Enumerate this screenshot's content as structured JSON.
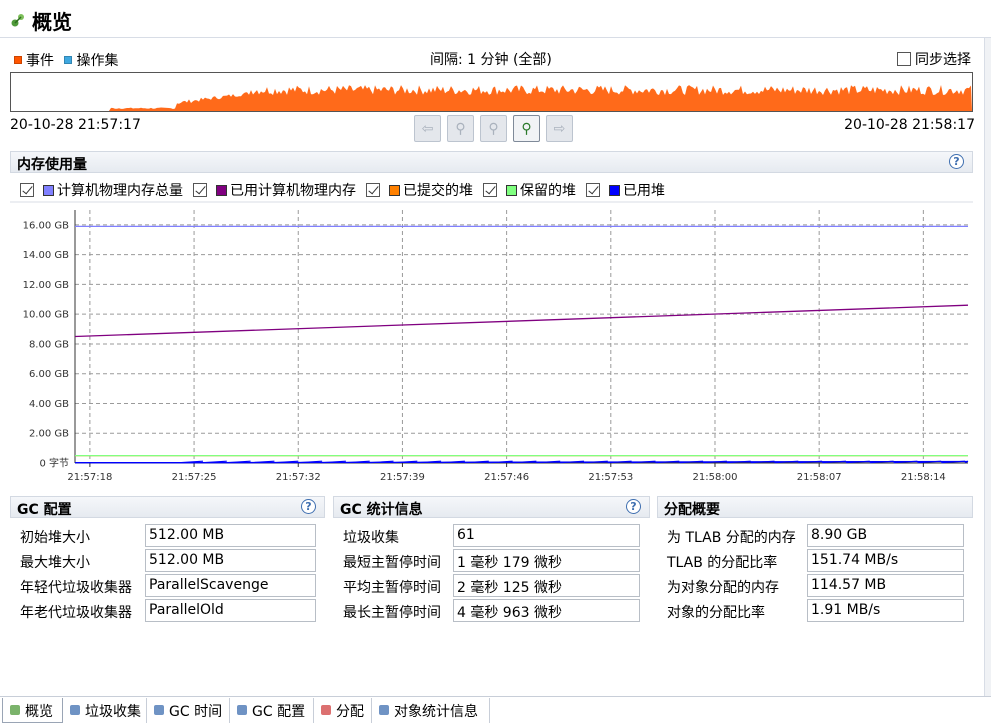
{
  "title": "概览",
  "events": {
    "legend": [
      {
        "label": "事件",
        "color": "#ff5500"
      },
      {
        "label": "操作集",
        "color": "#3fa8e0"
      }
    ],
    "interval_label": "间隔: 1 分钟 (全部)",
    "sync_label": "同步选择",
    "sync_checked": false,
    "start_time": "20-10-28 21:57:17",
    "end_time": "20-10-28 21:58:17",
    "bar_color": "#ff6a1a"
  },
  "nav_buttons": [
    {
      "name": "back-arrow-icon",
      "active": false
    },
    {
      "name": "zoom-out-icon",
      "active": false
    },
    {
      "name": "zoom-reset-icon",
      "active": false
    },
    {
      "name": "zoom-in-icon",
      "active": true
    },
    {
      "name": "forward-arrow-icon",
      "active": false
    }
  ],
  "memory": {
    "title": "内存使用量",
    "help": "?",
    "legend": [
      {
        "label": "计算机物理内存总量",
        "color": "#8080ff",
        "checked": true
      },
      {
        "label": "已用计算机物理内存",
        "color": "#800080",
        "checked": true
      },
      {
        "label": "已提交的堆",
        "color": "#ff8000",
        "checked": true
      },
      {
        "label": "保留的堆",
        "color": "#80ff80",
        "checked": true
      },
      {
        "label": "已用堆",
        "color": "#0000ff",
        "checked": true
      }
    ]
  },
  "chart_data": {
    "type": "line",
    "title": "内存使用量",
    "y_tick_labels": [
      "0 字节",
      "2.00 GB",
      "4.00 GB",
      "6.00 GB",
      "8.00 GB",
      "10.00 GB",
      "12.00 GB",
      "14.00 GB",
      "16.00 GB"
    ],
    "y_ticks_gb": [
      0,
      2,
      4,
      6,
      8,
      10,
      12,
      14,
      16
    ],
    "ylim": [
      0,
      17
    ],
    "x_tick_labels": [
      "21:57:18",
      "21:57:25",
      "21:57:32",
      "21:57:39",
      "21:57:46",
      "21:57:53",
      "21:58:00",
      "21:58:07",
      "21:58:14"
    ],
    "x_range_seconds": [
      0,
      60
    ],
    "grid": true,
    "series": [
      {
        "name": "计算机物理内存总量",
        "color": "#8080ff",
        "x": [
          0,
          60
        ],
        "y": [
          15.9,
          15.9
        ]
      },
      {
        "name": "已用计算机物理内存",
        "color": "#800080",
        "x": [
          0,
          60
        ],
        "y": [
          8.5,
          10.6
        ]
      },
      {
        "name": "已提交的堆",
        "color": "#ff8000",
        "x": [
          0,
          60
        ],
        "y": [
          0.5,
          0.5
        ]
      },
      {
        "name": "保留的堆",
        "color": "#80ff80",
        "x": [
          0,
          60
        ],
        "y": [
          0.5,
          0.5
        ]
      },
      {
        "name": "已用堆",
        "color": "#0000ff",
        "x": [
          0,
          7,
          60
        ],
        "y": [
          0.02,
          0.02,
          0.1
        ]
      }
    ]
  },
  "gc_config": {
    "title": "GC 配置",
    "help": "?",
    "rows": [
      {
        "label": "初始堆大小",
        "value": "512.00 MB"
      },
      {
        "label": "最大堆大小",
        "value": "512.00 MB"
      },
      {
        "label": "年轻代垃圾收集器",
        "value": "ParallelScavenge"
      },
      {
        "label": "年老代垃圾收集器",
        "value": "ParallelOld"
      }
    ]
  },
  "gc_stats": {
    "title": "GC 统计信息",
    "help": "?",
    "rows": [
      {
        "label": "垃圾收集",
        "value": "61"
      },
      {
        "label": "最短主暂停时间",
        "value": "1 毫秒 179 微秒"
      },
      {
        "label": "平均主暂停时间",
        "value": "2 毫秒 125 微秒"
      },
      {
        "label": "最长主暂停时间",
        "value": "4 毫秒 963 微秒"
      }
    ]
  },
  "alloc": {
    "title": "分配概要",
    "rows": [
      {
        "label": "为 TLAB 分配的内存",
        "value": "8.90 GB"
      },
      {
        "label": "TLAB 的分配比率",
        "value": "151.74 MB/s"
      },
      {
        "label": "为对象分配的内存",
        "value": "114.57 MB"
      },
      {
        "label": "对象的分配比率",
        "value": "1.91 MB/s"
      }
    ]
  },
  "tabs": [
    {
      "label": "概览",
      "icon": "overview-icon",
      "active": true
    },
    {
      "label": "垃圾收集",
      "icon": "trash-icon",
      "active": false
    },
    {
      "label": "GC 时间",
      "icon": "gc-time-icon",
      "active": false
    },
    {
      "label": "GC 配置",
      "icon": "gc-config-icon",
      "active": false
    },
    {
      "label": "分配",
      "icon": "pie-chart-icon",
      "active": false
    },
    {
      "label": "对象统计信息",
      "icon": "object-stats-icon",
      "active": false
    }
  ]
}
